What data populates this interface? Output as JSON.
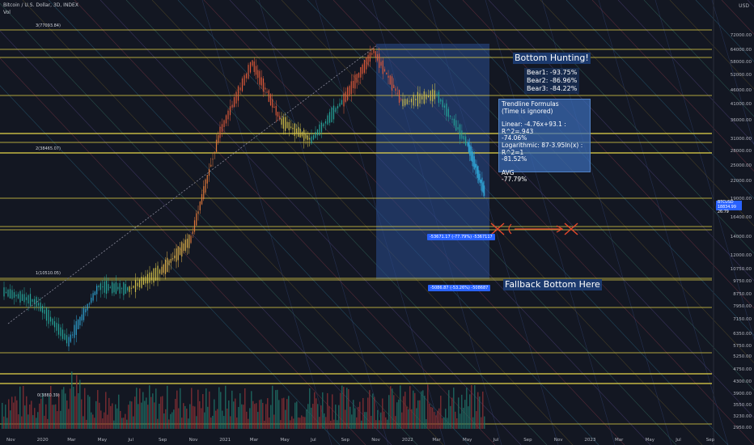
{
  "header": {
    "title": "Bitcoin / U.S. Dollar, 3D, INDEX",
    "indicator": "Vol"
  },
  "currency": "USD",
  "price_tag": {
    "symbol": "BTCUSD",
    "value": "18834.99",
    "sub": "26:79"
  },
  "y_axis_ticks": [
    "72000.00",
    "64000.00",
    "58000.00",
    "52000.00",
    "46000.00",
    "41000.00",
    "36000.00",
    "31000.00",
    "28000.00",
    "25000.00",
    "22000.00",
    "19000.00",
    "16400.00",
    "14000.00",
    "12000.00",
    "10750.00",
    "9750.00",
    "8750.00",
    "7950.00",
    "7150.00",
    "6350.00",
    "5750.00",
    "5250.00",
    "4750.00",
    "4300.00",
    "3900.00",
    "3550.00",
    "3230.00",
    "2950.00"
  ],
  "x_axis_ticks": [
    "Nov",
    "2020",
    "Mar",
    "May",
    "Jul",
    "Sep",
    "Nov",
    "2021",
    "Mar",
    "May",
    "Jul",
    "Sep",
    "Nov",
    "2022",
    "Mar",
    "May",
    "Jul",
    "Sep",
    "Nov",
    "2023",
    "Mar",
    "May",
    "Jul",
    "Sep"
  ],
  "fib_labels": [
    "3(77093.84)",
    "2(38465.07)",
    "1(10510.05)",
    "0(3880.39)"
  ],
  "annotations": {
    "bottom_hunting": "Bottom Hunting!",
    "bears": [
      "Bear1: -93.75%",
      "Bear2: -86.96%",
      "Bear3: -84.22%"
    ],
    "formulas": {
      "title": "Trendline Formulas",
      "subtitle": "(Time is ignored)",
      "linear": "Linear: -4.76x+93.1 : R^2=.943",
      "linear_val": "-74.06%",
      "log": "Logarithmic: 87-3.95ln(x) : R^2=1",
      "log_val": "-81.52%",
      "avg_label": "AVG",
      "avg_val": "-77.79%"
    },
    "fallback": "Fallback Bottom Here",
    "measure1": "-53671.17 (-77.79%) -5367117",
    "measure2": "-5086.87 (-53.26%) -508687"
  },
  "colors": {
    "background": "#131722",
    "fib_line": "#e6d64a",
    "box": "#2a4d8f",
    "up": "#26a69a",
    "down": "#ef5350",
    "cross": "#e8492c"
  },
  "chart_data": {
    "type": "line",
    "title": "Bitcoin / U.S. Dollar, 3D, INDEX",
    "scale": "log",
    "ylim": [
      2950,
      72000
    ],
    "x": [
      "2019-11",
      "2020-01",
      "2020-03",
      "2020-05",
      "2020-07",
      "2020-09",
      "2020-11",
      "2021-01",
      "2021-03",
      "2021-05",
      "2021-07",
      "2021-09",
      "2021-11",
      "2022-01",
      "2022-03",
      "2022-05",
      "2022-06"
    ],
    "series": [
      {
        "values": [
          9000,
          8300,
          6000,
          9400,
          9200,
          10700,
          13800,
          33000,
          58000,
          36000,
          31000,
          43000,
          64000,
          42000,
          45000,
          30000,
          20000
        ]
      }
    ],
    "fib_levels": [
      3880.39,
      10510.05,
      38465.07,
      77093.84
    ]
  }
}
